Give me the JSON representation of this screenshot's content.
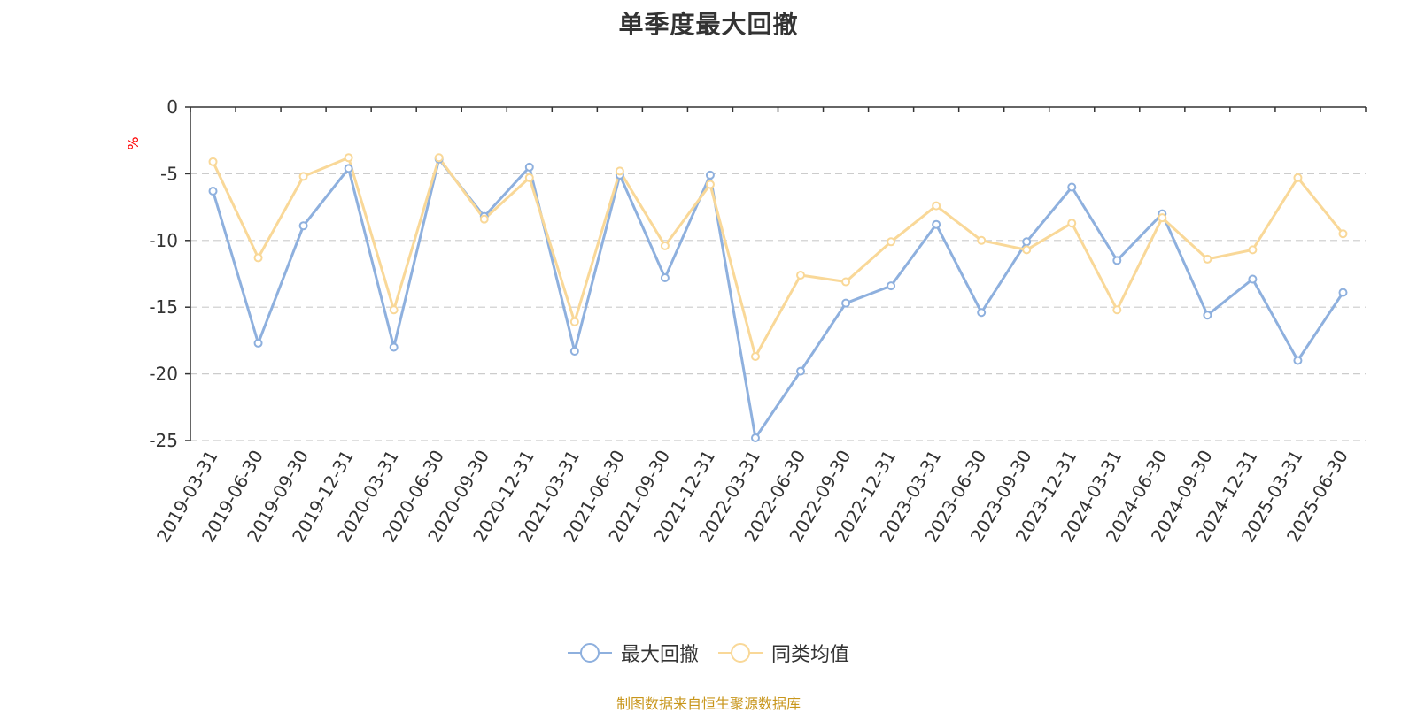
{
  "chart_data": {
    "type": "line",
    "title": "单季度最大回撤",
    "ylabel": "%",
    "xlabel": "",
    "ylim": [
      -25,
      0
    ],
    "yticks": [
      0,
      -5,
      -10,
      -15,
      -20,
      -25
    ],
    "grid": true,
    "legend_position": "bottom-center",
    "categories": [
      "2019-03-31",
      "2019-06-30",
      "2019-09-30",
      "2019-12-31",
      "2020-03-31",
      "2020-06-30",
      "2020-09-30",
      "2020-12-31",
      "2021-03-31",
      "2021-06-30",
      "2021-09-30",
      "2021-12-31",
      "2022-03-31",
      "2022-06-30",
      "2022-09-30",
      "2022-12-31",
      "2023-03-31",
      "2023-06-30",
      "2023-09-30",
      "2023-12-31",
      "2024-03-31",
      "2024-06-30",
      "2024-09-30",
      "2024-12-31",
      "2025-03-31",
      "2025-06-30"
    ],
    "series": [
      {
        "name": "最大回撤",
        "color": "#8eb0de",
        "values": [
          -6.3,
          -17.7,
          -8.9,
          -4.6,
          -18.0,
          -3.9,
          -8.2,
          -4.5,
          -18.3,
          -5.1,
          -12.8,
          -5.1,
          -24.8,
          -19.8,
          -14.7,
          -13.4,
          -8.8,
          -15.4,
          -10.1,
          -6.0,
          -11.5,
          -8.0,
          -15.6,
          -12.9,
          -19.0,
          -13.9
        ]
      },
      {
        "name": "同类均值",
        "color": "#f9d898",
        "values": [
          -4.1,
          -11.3,
          -5.2,
          -3.8,
          -15.2,
          -3.8,
          -8.4,
          -5.3,
          -16.1,
          -4.8,
          -10.4,
          -5.8,
          -18.7,
          -12.6,
          -13.1,
          -10.1,
          -7.4,
          -10.0,
          -10.7,
          -8.7,
          -15.2,
          -8.3,
          -11.4,
          -10.7,
          -5.3,
          -9.5
        ]
      }
    ]
  },
  "source_note": "制图数据来自恒生聚源数据库",
  "colors": {
    "axis": "#333333",
    "grid": "#cccccc",
    "ylabel": "#ff0000",
    "source_note": "#c8961c"
  }
}
